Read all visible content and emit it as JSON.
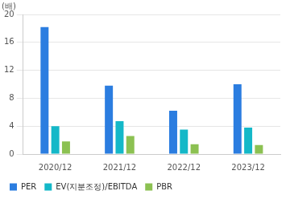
{
  "chart_data": {
    "type": "bar",
    "ylabel": "(배)",
    "categories": [
      "2020/12",
      "2021/12",
      "2022/12",
      "2023/12"
    ],
    "series": [
      {
        "name": "PER",
        "color": "#2b7de0",
        "values": [
          18.2,
          9.8,
          6.2,
          10.0
        ]
      },
      {
        "name": "EV(지분조정)/EBITDA",
        "color": "#14b8c8",
        "values": [
          4.0,
          4.7,
          3.5,
          3.8
        ]
      },
      {
        "name": "PBR",
        "color": "#8cc152",
        "values": [
          1.8,
          2.6,
          1.4,
          1.3
        ]
      }
    ],
    "ylim": [
      0,
      20
    ],
    "yticks": [
      0,
      4,
      8,
      12,
      16,
      20
    ],
    "grid": true,
    "legend": "bottom"
  }
}
